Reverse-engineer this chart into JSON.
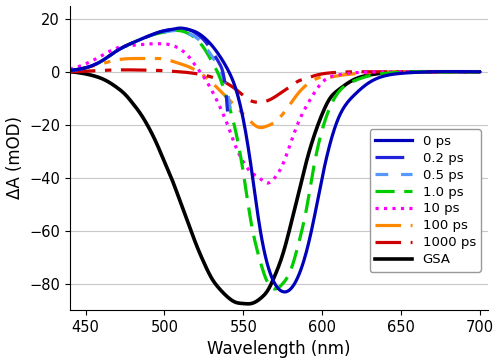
{
  "xlim": [
    440,
    705
  ],
  "ylim": [
    -90,
    25
  ],
  "xlabel": "Wavelength (nm)",
  "ylabel": "ΔA (mOD)",
  "yticks": [
    -80,
    -60,
    -40,
    -20,
    0,
    20
  ],
  "xticks": [
    450,
    500,
    550,
    600,
    650,
    700
  ],
  "grid_color": "#c8c8c8",
  "background_color": "#ffffff",
  "series": [
    {
      "label": "0 ps",
      "color": "#0000bb",
      "linestyle": "solid",
      "linewidth": 2.3,
      "points_x": [
        440,
        450,
        460,
        470,
        480,
        490,
        500,
        505,
        510,
        515,
        520,
        525,
        530,
        535,
        540,
        545,
        550,
        555,
        560,
        565,
        570,
        575,
        580,
        585,
        590,
        595,
        600,
        610,
        620,
        630,
        640,
        650,
        660,
        670,
        700
      ],
      "points_y": [
        0.5,
        1.5,
        4,
        8,
        11,
        13.5,
        15.5,
        16,
        16.5,
        16,
        15,
        13,
        10,
        6,
        1,
        -6,
        -18,
        -36,
        -57,
        -72,
        -80,
        -83,
        -82,
        -77,
        -68,
        -55,
        -40,
        -18,
        -9,
        -4,
        -1.5,
        -0.6,
        -0.2,
        0,
        0
      ]
    },
    {
      "label": "0.2 ps",
      "color": "#2222dd",
      "linestyle": "dashed_long",
      "linewidth": 2.3,
      "points_x": [
        440,
        450,
        460,
        470,
        480,
        490,
        500,
        505,
        510,
        515,
        520,
        525,
        530,
        535,
        537,
        540
      ],
      "points_y": [
        0.5,
        1.5,
        4,
        8,
        11,
        13.5,
        15.5,
        16,
        16.2,
        16,
        14.5,
        12,
        8,
        3,
        0,
        -15
      ]
    },
    {
      "label": "0.5 ps",
      "color": "#5599ff",
      "linestyle": "dashed_short",
      "linewidth": 2.3,
      "points_x": [
        440,
        450,
        460,
        470,
        480,
        490,
        500,
        505,
        510,
        515,
        520,
        525,
        530,
        535,
        540,
        542
      ],
      "points_y": [
        0.5,
        1.5,
        4,
        8,
        11,
        13.5,
        15,
        15.5,
        15.5,
        14.5,
        13,
        10,
        6,
        1,
        -8,
        -15
      ]
    },
    {
      "label": "1.0 ps",
      "color": "#00cc00",
      "linestyle": "dashed_medium",
      "linewidth": 2.3,
      "points_x": [
        440,
        450,
        460,
        470,
        480,
        490,
        500,
        505,
        510,
        515,
        520,
        525,
        530,
        535,
        540,
        545,
        550,
        555,
        560,
        565,
        570,
        575,
        580,
        585,
        590,
        595,
        600,
        610,
        620,
        630,
        640,
        650,
        660,
        670,
        700
      ],
      "points_y": [
        0.5,
        1.5,
        4,
        8,
        11,
        13.5,
        15,
        15.5,
        15.5,
        14.5,
        12.5,
        9,
        4,
        -2,
        -11,
        -22,
        -38,
        -57,
        -70,
        -79,
        -82,
        -80,
        -75,
        -65,
        -52,
        -35,
        -22,
        -8,
        -3.5,
        -1.5,
        -0.6,
        -0.2,
        0,
        0,
        0
      ]
    },
    {
      "label": "10 ps",
      "color": "#ff00ff",
      "linestyle": "dotted",
      "linewidth": 2.3,
      "points_x": [
        440,
        450,
        460,
        470,
        480,
        490,
        500,
        505,
        510,
        515,
        517,
        520,
        525,
        530,
        535,
        540,
        545,
        550,
        555,
        560,
        565,
        570,
        575,
        580,
        585,
        590,
        595,
        600,
        610,
        620,
        630,
        640,
        650,
        660,
        700
      ],
      "points_y": [
        1,
        3,
        6,
        9,
        10,
        10.5,
        10.5,
        10,
        8.5,
        6,
        4.5,
        2,
        -2,
        -7,
        -13,
        -20,
        -28,
        -34,
        -38,
        -40,
        -42,
        -40,
        -35,
        -27,
        -19,
        -13,
        -8,
        -4,
        -1.2,
        -0.4,
        -0.1,
        0,
        0,
        0,
        0
      ]
    },
    {
      "label": "100 ps",
      "color": "#ff8800",
      "linestyle": "dashdot",
      "linewidth": 2.3,
      "points_x": [
        440,
        450,
        460,
        470,
        480,
        490,
        500,
        505,
        510,
        515,
        520,
        525,
        530,
        535,
        540,
        545,
        550,
        555,
        560,
        565,
        570,
        575,
        580,
        585,
        590,
        595,
        600,
        605,
        610,
        620,
        630,
        640,
        650,
        660,
        700
      ],
      "points_y": [
        0.5,
        1.5,
        3,
        4.5,
        5,
        5,
        4.8,
        4,
        3,
        2,
        0.5,
        -1.5,
        -4,
        -7,
        -10,
        -13,
        -16,
        -19,
        -21,
        -20.5,
        -19,
        -16,
        -12,
        -8,
        -5,
        -3,
        -2,
        -2,
        -1.5,
        -0.8,
        -0.3,
        -0.1,
        0,
        0,
        0
      ]
    },
    {
      "label": "1000 ps",
      "color": "#cc0000",
      "linestyle": "dashdot",
      "linewidth": 2.3,
      "points_x": [
        440,
        450,
        460,
        470,
        480,
        490,
        500,
        505,
        510,
        515,
        520,
        525,
        530,
        535,
        540,
        545,
        550,
        555,
        560,
        565,
        570,
        575,
        580,
        585,
        590,
        595,
        600,
        610,
        620,
        630,
        640,
        650,
        660,
        700
      ],
      "points_y": [
        0,
        0.2,
        0.5,
        0.7,
        0.7,
        0.6,
        0.4,
        0.2,
        0,
        -0.3,
        -0.7,
        -1.2,
        -2,
        -3,
        -4.5,
        -6.5,
        -9,
        -11,
        -11.5,
        -11,
        -9.5,
        -7.5,
        -5.5,
        -3.5,
        -2.5,
        -1.5,
        -0.8,
        -0.2,
        0,
        0,
        0,
        0,
        0,
        0
      ]
    },
    {
      "label": "GSA",
      "color": "#000000",
      "linestyle": "solid",
      "linewidth": 2.6,
      "points_x": [
        440,
        445,
        450,
        455,
        460,
        465,
        470,
        475,
        480,
        485,
        490,
        495,
        500,
        505,
        510,
        515,
        520,
        525,
        530,
        535,
        540,
        545,
        550,
        555,
        560,
        562,
        565,
        570,
        575,
        580,
        585,
        590,
        595,
        600,
        605,
        610,
        620,
        630,
        640,
        650,
        660,
        670,
        680,
        690,
        700
      ],
      "points_y": [
        0,
        -0.3,
        -0.8,
        -1.5,
        -2.5,
        -4,
        -6,
        -8.5,
        -12,
        -16,
        -21,
        -27,
        -34,
        -41,
        -49,
        -57,
        -65,
        -72,
        -78,
        -82,
        -85,
        -87,
        -87.5,
        -87.5,
        -86,
        -85,
        -83,
        -77,
        -69,
        -58,
        -46,
        -34,
        -24,
        -16,
        -10,
        -7,
        -3,
        -1.2,
        -0.4,
        -0.1,
        0,
        0,
        0,
        0,
        0
      ]
    }
  ],
  "legend_fontsize": 9.5,
  "label_fontsize": 12,
  "tick_fontsize": 10.5
}
